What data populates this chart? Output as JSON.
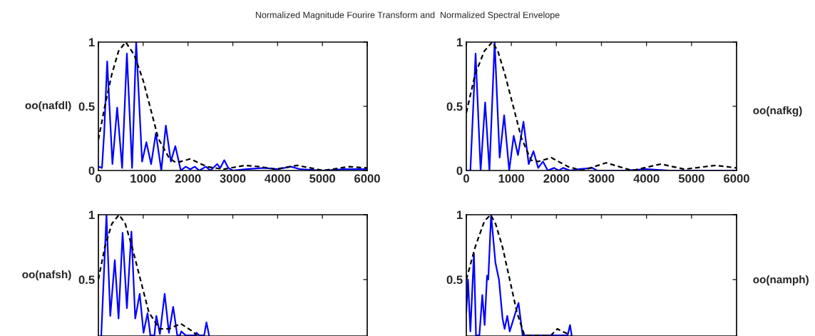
{
  "chart_data": [
    {
      "type": "line",
      "title": "Normalized Magnitude Fourire Transform and  Normalized Spectral Envelope",
      "ylabel": "oo(nafdl)",
      "xlim": [
        0,
        6000
      ],
      "ylim": [
        0,
        1
      ],
      "xticks": [
        0,
        1000,
        2000,
        3000,
        4000,
        5000,
        6000
      ],
      "yticks": [
        0,
        0.5,
        1
      ],
      "grid": false,
      "legend": false,
      "series": [
        {
          "color": "#0000ff",
          "line_style": "solid",
          "x": [
            0,
            80,
            130,
            196,
            313,
            419,
            530,
            636,
            752,
            843,
            975,
            1071,
            1177,
            1283,
            1404,
            1505,
            1617,
            1717,
            1839,
            1950,
            2050,
            2150,
            2250,
            2400,
            2500,
            2650,
            2720,
            2809,
            2900,
            3000,
            3300,
            3700,
            4000,
            4300,
            4500,
            5000,
            5500,
            6000
          ],
          "values": [
            0.03,
            0.02,
            0.3,
            0.85,
            0.05,
            0.49,
            0.02,
            0.91,
            0.02,
            1.0,
            0.07,
            0.22,
            0.05,
            0.29,
            0.0,
            0.35,
            0.07,
            0.19,
            0.0,
            0.03,
            0.01,
            0.03,
            0.0,
            0.03,
            0.0,
            0.05,
            0.02,
            0.08,
            0.02,
            0.0,
            0.01,
            0.02,
            0.01,
            0.03,
            0.01,
            0.0,
            0.01,
            0.01
          ]
        },
        {
          "color": "#000000",
          "line_style": "dashed",
          "x": [
            0,
            143,
            300,
            450,
            610,
            800,
            1000,
            1150,
            1336,
            1574,
            1733,
            2051,
            2422,
            2793,
            3270,
            3600,
            3960,
            4436,
            5019,
            5602,
            6000
          ],
          "values": [
            0.24,
            0.5,
            0.75,
            0.93,
            1.0,
            0.9,
            0.7,
            0.5,
            0.25,
            0.1,
            0.06,
            0.09,
            0.03,
            0.01,
            0.04,
            0.03,
            0.01,
            0.04,
            0.0,
            0.03,
            0.02
          ]
        }
      ]
    },
    {
      "type": "line",
      "ylabel": "oo(nafkg)",
      "xlim": [
        0,
        6000
      ],
      "ylim": [
        0,
        1
      ],
      "xticks": [
        0,
        1000,
        2000,
        3000,
        4000,
        5000,
        6000
      ],
      "yticks": [
        0,
        0.5,
        1
      ],
      "grid": false,
      "legend": false,
      "series": [
        {
          "color": "#0000ff",
          "line_style": "solid",
          "x": [
            0,
            90,
            206,
            317,
            418,
            513,
            629,
            740,
            840,
            952,
            1052,
            1147,
            1269,
            1385,
            1491,
            1596,
            1702,
            1808,
            1950,
            2050,
            2150,
            2300,
            2500,
            2800,
            2900,
            3500,
            4000,
            4500,
            5000,
            6000
          ],
          "values": [
            0.0,
            0.0,
            0.91,
            0.0,
            0.53,
            0.0,
            1.0,
            0.1,
            0.43,
            0.0,
            0.27,
            0.12,
            0.38,
            0.05,
            0.15,
            0.02,
            0.07,
            0.0,
            0.02,
            0.0,
            0.02,
            0.0,
            0.01,
            0.02,
            0.0,
            0.0,
            0.01,
            0.0,
            0.0,
            0.0
          ]
        },
        {
          "color": "#000000",
          "line_style": "dashed",
          "x": [
            0,
            196,
            400,
            576,
            700,
            856,
            1041,
            1226,
            1438,
            1600,
            1887,
            2257,
            2574,
            3103,
            3684,
            4319,
            4847,
            5535,
            6000
          ],
          "values": [
            0.45,
            0.75,
            0.93,
            1.0,
            0.93,
            0.75,
            0.5,
            0.25,
            0.08,
            0.07,
            0.1,
            0.03,
            0.0,
            0.06,
            0.0,
            0.05,
            0.01,
            0.04,
            0.02
          ]
        }
      ]
    },
    {
      "type": "line",
      "ylabel": "oo(nafsh)",
      "xlim": [
        0,
        6000
      ],
      "ylim": [
        0.065,
        1
      ],
      "xticks": [
        0,
        1000,
        2000,
        3000,
        4000,
        5000,
        6000
      ],
      "yticks": [
        0.5,
        1
      ],
      "tick_labels": "y",
      "grid": false,
      "legend": false,
      "series": [
        {
          "color": "#0000ff",
          "line_style": "solid",
          "x": [
            64,
            180,
            265,
            366,
            450,
            540,
            636,
            737,
            822,
            922,
            1007,
            1097,
            1160,
            1203,
            1250,
            1293,
            1373,
            1479,
            1574,
            1669,
            1760,
            1786,
            1820,
            1850,
            1950,
            2051,
            2150,
            2190,
            2250,
            2300,
            2360,
            2412,
            2470
          ],
          "values": [
            0.07,
            1.0,
            0.22,
            0.65,
            0.2,
            0.86,
            0.28,
            0.87,
            0.2,
            0.39,
            0.09,
            0.24,
            0.07,
            null,
            0.07,
            0.22,
            0.08,
            0.39,
            0.09,
            0.29,
            0.07,
            null,
            0.07,
            0.1,
            0.07,
            null,
            0.07,
            0.09,
            0.07,
            null,
            0.07,
            0.17,
            0.07
          ]
        },
        {
          "color": "#000000",
          "line_style": "dashed",
          "x": [
            0,
            143,
            300,
            461,
            600,
            753,
            938,
            1124,
            1362,
            1574,
            1839,
            2104,
            2200
          ],
          "values": [
            0.5,
            0.75,
            0.93,
            1.0,
            0.93,
            0.75,
            0.5,
            0.25,
            0.12,
            0.12,
            0.16,
            0.1,
            0.07
          ]
        }
      ]
    },
    {
      "type": "line",
      "ylabel": "oo(namph)",
      "xlim": [
        0,
        6000
      ],
      "ylim": [
        0.065,
        1
      ],
      "xticks": [
        0,
        1000,
        2000,
        3000,
        4000,
        5000,
        6000
      ],
      "yticks": [
        0.5,
        1
      ],
      "tick_labels": "y",
      "grid": false,
      "legend": false,
      "series": [
        {
          "color": "#0000ff",
          "line_style": "solid",
          "x": [
            0,
            37,
            90,
            169,
            215,
            249,
            290,
            355,
            407,
            460,
            487,
            550,
            646,
            725,
            804,
            850,
            910,
            963,
            1159,
            1250,
            1500,
            2250,
            2302,
            2340
          ],
          "values": [
            0.25,
            0.5,
            0.1,
            0.7,
            0.07,
            null,
            0.07,
            0.38,
            0.15,
            0.53,
            0.5,
            1.0,
            0.63,
            0.5,
            0.2,
            0.12,
            0.22,
            0.1,
            0.32,
            0.07,
            null,
            0.07,
            0.15,
            0.07
          ]
        },
        {
          "color": "#000000",
          "line_style": "dashed",
          "x": [
            0,
            196,
            400,
            540,
            650,
            804,
            963,
            1122,
            1290,
            1677,
            1880,
            2021,
            2312
          ],
          "values": [
            0.5,
            0.75,
            0.95,
            1.0,
            0.93,
            0.75,
            0.5,
            0.25,
            0.07,
            null,
            0.07,
            0.12,
            0.07
          ]
        }
      ]
    }
  ]
}
